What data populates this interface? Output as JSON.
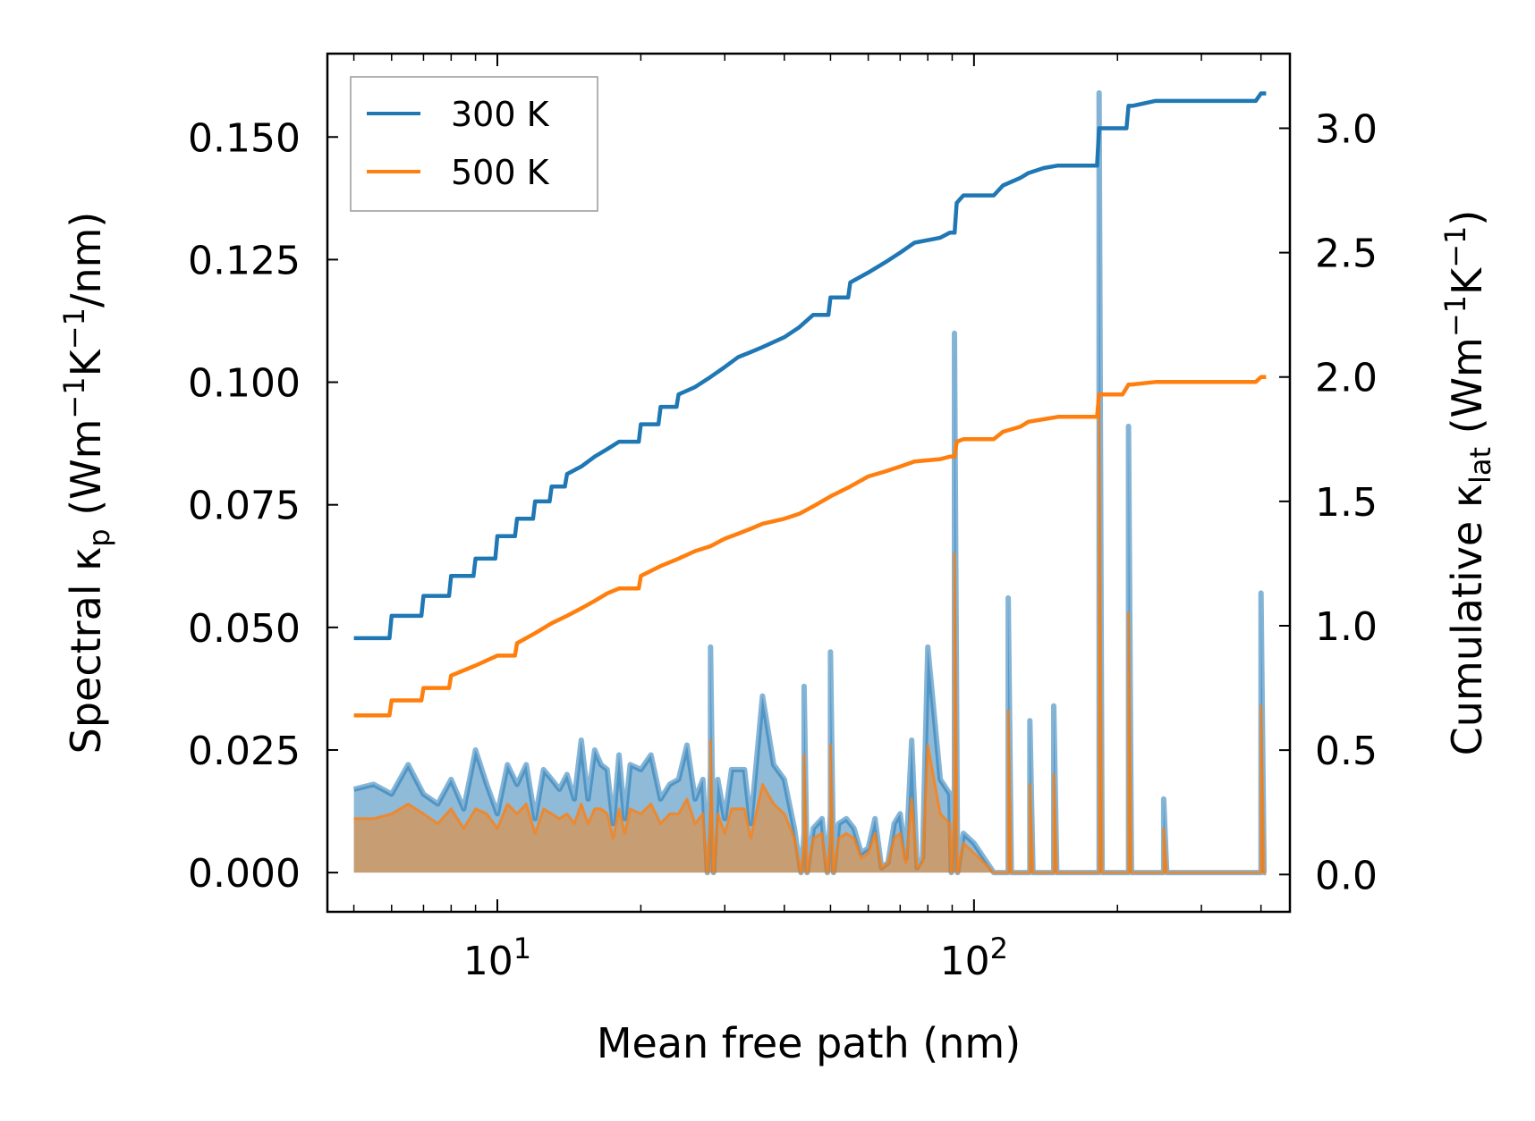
{
  "chart_data": {
    "type": "line",
    "xlabel": "Mean free path (nm)",
    "xscale": "log",
    "xlim": [
      4.4,
      460
    ],
    "xticks": [
      {
        "value": 10,
        "label": "10^1"
      },
      {
        "value": 100,
        "label": "10^2"
      }
    ],
    "ylabel_left": {
      "prefix": "Spectral κ",
      "sub": "p",
      "unit_pre": " (Wm",
      "sup1": "−1",
      "unit_mid": "K",
      "sup2": "−1",
      "unit_post": "/nm)"
    },
    "ylim_left": [
      -0.008,
      0.167
    ],
    "yticks_left": [
      "0.000",
      "0.025",
      "0.050",
      "0.075",
      "0.100",
      "0.125",
      "0.150"
    ],
    "ylabel_right": {
      "prefix": "Cumulative κ",
      "sub": "lat",
      "unit_pre": " (Wm",
      "sup1": "−1",
      "unit_mid": "K",
      "sup2": "−1",
      "unit_post": ")"
    },
    "ylim_right": [
      -0.15,
      3.3
    ],
    "yticks_right": [
      "0.0",
      "0.5",
      "1.0",
      "1.5",
      "2.0",
      "2.5",
      "3.0"
    ],
    "legend": {
      "position": "top-left",
      "entries": [
        "300 K",
        "500 K"
      ]
    },
    "colors": {
      "300K": "#1f77b4",
      "500K": "#ff7f0e",
      "fill300": "#1f77b4",
      "fill500": "#ff7f0e"
    },
    "spectral_x": [
      5.0,
      5.5,
      6.0,
      6.5,
      7.0,
      7.5,
      8.0,
      8.5,
      9.0,
      9.5,
      10.0,
      10.5,
      11.0,
      11.5,
      12.0,
      12.5,
      13.0,
      13.5,
      14.0,
      14.5,
      15.0,
      15.5,
      16.0,
      16.5,
      17.0,
      17.5,
      18.0,
      18.5,
      19.0,
      20.0,
      21.0,
      22.0,
      23.0,
      24.0,
      25.0,
      26.0,
      27.0,
      28.0,
      29.0,
      30.0,
      31.0,
      32.0,
      33.0,
      34.0,
      36.0,
      38.0,
      40.0,
      42.0,
      44.0,
      46.0,
      48.0,
      50.0,
      52.0,
      54.0,
      56.0,
      58.0,
      60.0,
      62.0,
      64.0,
      66.0,
      68.0,
      70.0,
      72.0,
      74.0,
      76.0,
      78.0,
      80.0,
      85.0,
      89.0,
      91.0,
      93.0,
      95.0,
      100.0,
      110.0,
      115.0,
      118.0,
      122.0,
      127.0,
      131.0,
      135.0,
      142.0,
      147.0,
      151.0,
      170.0,
      180.0,
      183.0,
      186.0,
      200.0,
      208.0,
      211.0,
      214.0,
      230.0,
      245.0,
      250.0,
      255.0,
      300.0,
      390.0,
      400.0,
      410.0
    ],
    "spectral_300": [
      0.017,
      0.018,
      0.016,
      0.022,
      0.016,
      0.014,
      0.019,
      0.013,
      0.025,
      0.018,
      0.012,
      0.022,
      0.018,
      0.022,
      0.011,
      0.021,
      0.019,
      0.017,
      0.02,
      0.015,
      0.027,
      0.015,
      0.025,
      0.022,
      0.021,
      0.01,
      0.024,
      0.011,
      0.022,
      0.021,
      0.024,
      0.015,
      0.018,
      0.019,
      0.026,
      0.015,
      0.019,
      0.021,
      0.019,
      0.011,
      0.021,
      0.021,
      0.021,
      0.01,
      0.036,
      0.022,
      0.019,
      0.009,
      0.008,
      0.009,
      0.011,
      0.012,
      0.01,
      0.011,
      0.009,
      0.004,
      0.005,
      0.011,
      0.001,
      0.002,
      0.01,
      0.012,
      0.003,
      0.027,
      0.001,
      0.003,
      0.046,
      0.019,
      0.016,
      0.018,
      0.002,
      0.008,
      0.006,
      0.0,
      0.0,
      0.0,
      0.0,
      0.0,
      0.0,
      0.0,
      0.0,
      0.0,
      0.0,
      0.0,
      0.0,
      0.0,
      0.0,
      0.0,
      0.0,
      0.0,
      0.0,
      0.0,
      0.0,
      0.0,
      0.0,
      0.0,
      0.0,
      0.0,
      0.0
    ],
    "spectral_500": [
      0.011,
      0.011,
      0.012,
      0.014,
      0.012,
      0.01,
      0.013,
      0.009,
      0.013,
      0.012,
      0.009,
      0.014,
      0.012,
      0.014,
      0.008,
      0.013,
      0.012,
      0.011,
      0.012,
      0.01,
      0.014,
      0.01,
      0.013,
      0.013,
      0.012,
      0.007,
      0.013,
      0.008,
      0.013,
      0.012,
      0.014,
      0.01,
      0.012,
      0.012,
      0.015,
      0.01,
      0.012,
      0.013,
      0.012,
      0.008,
      0.013,
      0.013,
      0.013,
      0.007,
      0.018,
      0.014,
      0.012,
      0.007,
      0.006,
      0.007,
      0.008,
      0.008,
      0.007,
      0.008,
      0.007,
      0.003,
      0.004,
      0.008,
      0.001,
      0.002,
      0.007,
      0.008,
      0.002,
      0.015,
      0.001,
      0.002,
      0.026,
      0.012,
      0.01,
      0.012,
      0.002,
      0.006,
      0.004,
      0.0,
      0.0,
      0.0,
      0.0,
      0.0,
      0.0,
      0.0,
      0.0,
      0.0,
      0.0,
      0.0,
      0.0,
      0.0,
      0.0,
      0.0,
      0.0,
      0.0,
      0.0,
      0.0,
      0.0,
      0.0,
      0.0,
      0.0,
      0.0,
      0.0,
      0.0
    ],
    "spikes": [
      {
        "x": 28.0,
        "v300": 0.046,
        "v500": 0.027
      },
      {
        "x": 44.0,
        "v300": 0.038,
        "v500": 0.024
      },
      {
        "x": 50.0,
        "v300": 0.045,
        "v500": 0.026
      },
      {
        "x": 91.0,
        "v300": 0.11,
        "v500": 0.065
      },
      {
        "x": 118.0,
        "v300": 0.056,
        "v500": 0.033
      },
      {
        "x": 131.0,
        "v300": 0.031,
        "v500": 0.018
      },
      {
        "x": 147.0,
        "v300": 0.034,
        "v500": 0.02
      },
      {
        "x": 183.0,
        "v300": 0.159,
        "v500": 0.095
      },
      {
        "x": 211.0,
        "v300": 0.091,
        "v500": 0.053
      },
      {
        "x": 250.0,
        "v300": 0.015,
        "v500": 0.009
      },
      {
        "x": 400.0,
        "v300": 0.057,
        "v500": 0.034
      }
    ],
    "cumulative_x": [
      5.0,
      6.0,
      7.0,
      8.0,
      9.0,
      10.0,
      11.0,
      12.0,
      13.0,
      14.0,
      15.0,
      16.0,
      17.0,
      18.0,
      20.0,
      22.0,
      24.0,
      26.0,
      28.0,
      30.0,
      32.0,
      34.0,
      36.0,
      40.0,
      43.0,
      46.0,
      50.0,
      55.0,
      60.0,
      65.0,
      70.0,
      75.0,
      85.0,
      89.0,
      92.0,
      95.0,
      110.0,
      115.0,
      125.0,
      130.0,
      140.0,
      150.0,
      180.0,
      183.0,
      186.0,
      205.0,
      211.0,
      215.0,
      240.0,
      250.0,
      260.0,
      390.0,
      400.0,
      410.0
    ],
    "cumulative_300": [
      0.95,
      1.04,
      1.12,
      1.2,
      1.27,
      1.36,
      1.43,
      1.5,
      1.56,
      1.61,
      1.64,
      1.68,
      1.71,
      1.74,
      1.81,
      1.88,
      1.93,
      1.96,
      2.0,
      2.04,
      2.08,
      2.1,
      2.12,
      2.16,
      2.2,
      2.25,
      2.32,
      2.38,
      2.42,
      2.46,
      2.5,
      2.54,
      2.56,
      2.58,
      2.7,
      2.73,
      2.73,
      2.77,
      2.8,
      2.82,
      2.84,
      2.85,
      2.85,
      3.0,
      3.0,
      3.0,
      3.09,
      3.09,
      3.11,
      3.11,
      3.11,
      3.11,
      3.14,
      3.14
    ],
    "cumulative_500": [
      0.64,
      0.7,
      0.75,
      0.8,
      0.84,
      0.88,
      0.93,
      0.97,
      1.01,
      1.04,
      1.07,
      1.1,
      1.13,
      1.15,
      1.2,
      1.24,
      1.27,
      1.3,
      1.32,
      1.35,
      1.37,
      1.39,
      1.41,
      1.43,
      1.45,
      1.48,
      1.52,
      1.56,
      1.6,
      1.62,
      1.64,
      1.66,
      1.67,
      1.68,
      1.74,
      1.75,
      1.75,
      1.78,
      1.8,
      1.82,
      1.83,
      1.84,
      1.84,
      1.93,
      1.93,
      1.93,
      1.97,
      1.97,
      1.98,
      1.98,
      1.98,
      1.98,
      2.0,
      2.0
    ]
  }
}
